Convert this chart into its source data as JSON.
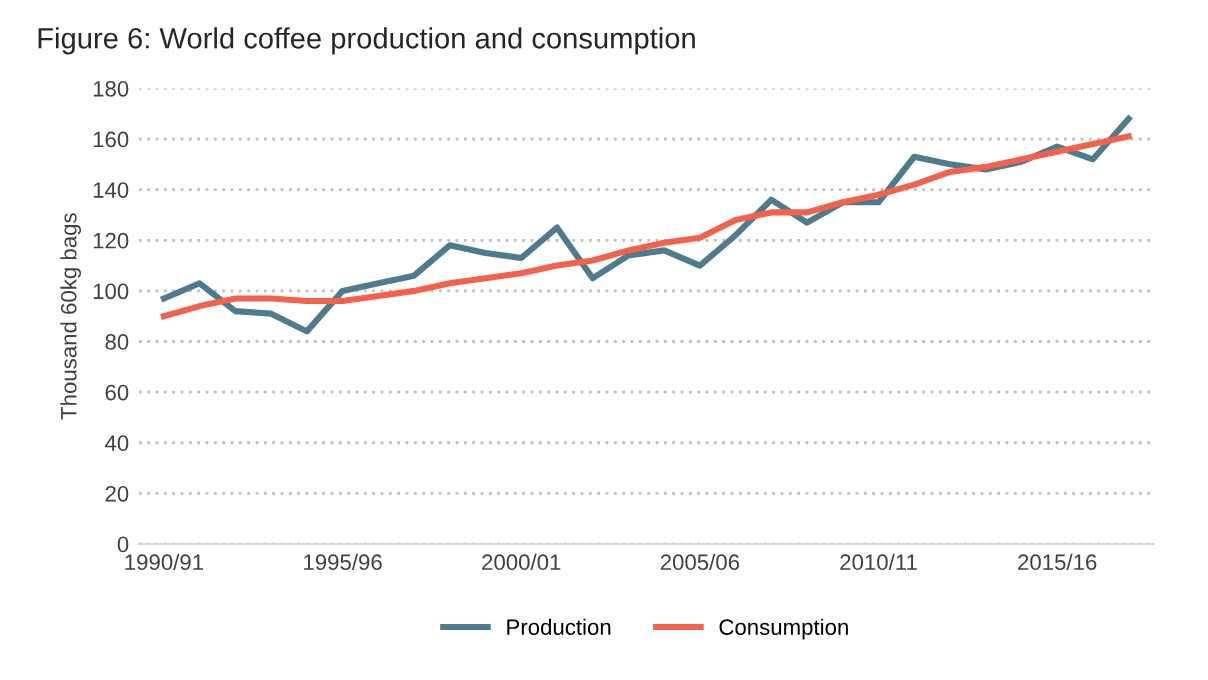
{
  "chart_data": {
    "type": "line",
    "title": "Figure 6: World coffee production and consumption",
    "ylabel": "Thousand 60kg bags",
    "categories": [
      "1990/91",
      null,
      null,
      null,
      null,
      "1995/96",
      null,
      null,
      null,
      null,
      "2000/01",
      null,
      null,
      null,
      null,
      "2005/06",
      null,
      null,
      null,
      null,
      "2010/11",
      null,
      null,
      null,
      null,
      "2015/16",
      null,
      null
    ],
    "series": [
      {
        "name": "Production",
        "color": "#4f7b8e",
        "values": [
          97,
          103,
          92,
          91,
          84,
          100,
          103,
          106,
          118,
          115,
          113,
          125,
          105,
          114,
          116,
          110,
          122,
          136,
          127,
          135,
          135,
          153,
          150,
          148,
          151,
          157,
          152,
          168
        ]
      },
      {
        "name": "Consumption",
        "color": "#f2624d",
        "values": [
          90,
          94,
          97,
          97,
          96,
          96,
          98,
          100,
          103,
          105,
          107,
          110,
          112,
          116,
          119,
          121,
          128,
          131,
          131,
          135,
          138,
          142,
          147,
          149,
          152,
          155,
          158,
          161
        ]
      }
    ],
    "ylim": [
      0,
      180
    ],
    "yticks": [
      0,
      20,
      40,
      60,
      80,
      100,
      120,
      140,
      160,
      180
    ],
    "grid": "y",
    "legend": "bottom",
    "marker": "none",
    "line_style": "solid"
  }
}
